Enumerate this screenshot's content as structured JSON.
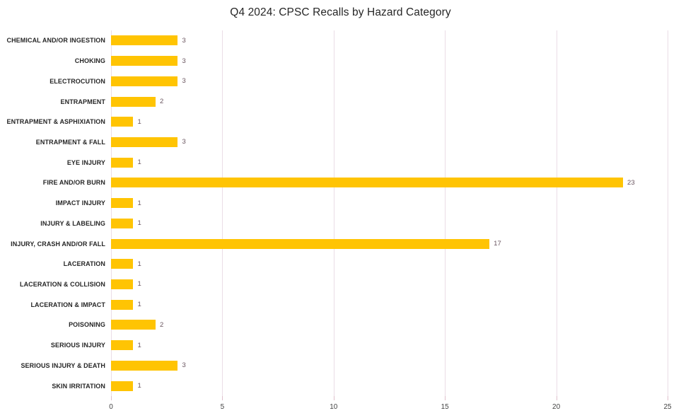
{
  "chart_data": {
    "type": "bar",
    "orientation": "horizontal",
    "title": "Q4 2024: CPSC Recalls by Hazard Category",
    "xlabel": "",
    "ylabel": "",
    "categories": [
      "CHEMICAL AND/OR INGESTION",
      "CHOKING",
      "ELECTROCUTION",
      "ENTRAPMENT",
      "ENTRAPMENT & ASPHIXIATION",
      "ENTRAPMENT & FALL",
      "EYE INJURY",
      "FIRE AND/OR BURN",
      "IMPACT INJURY",
      "INJURY & LABELING",
      "INJURY, CRASH AND/OR FALL",
      "LACERATION",
      "LACERATION & COLLISION",
      "LACERATION & IMPACT",
      "POISONING",
      "SERIOUS INJURY",
      "SERIOUS INJURY & DEATH",
      "SKIN IRRITATION"
    ],
    "values": [
      3,
      3,
      3,
      2,
      1,
      3,
      1,
      23,
      1,
      1,
      17,
      1,
      1,
      1,
      2,
      1,
      3,
      1
    ],
    "xlim": [
      0,
      25
    ],
    "x_ticks": [
      0,
      5,
      10,
      15,
      20,
      25
    ],
    "grid": true,
    "data_labels": true,
    "legend": "none"
  },
  "colors": {
    "bar": "#ffc403",
    "gridline": "#eadde6",
    "tick_mark": "#dfc0cc",
    "category_label": "#262626",
    "value_label": "#6a5660",
    "axis_label": "#444444",
    "title": "#262626",
    "background": "#ffffff"
  }
}
